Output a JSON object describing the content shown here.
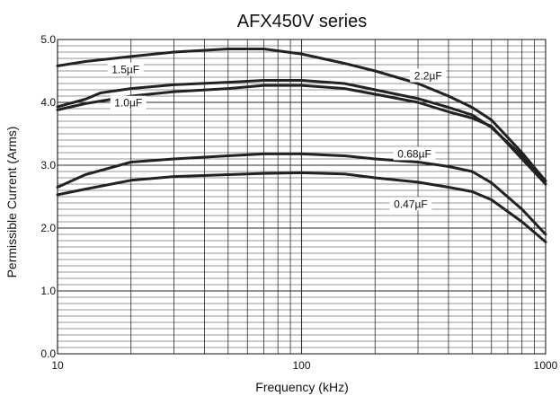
{
  "chart_data": {
    "type": "line",
    "title": "AFX450V series",
    "xlabel": "Frequency (kHz)",
    "ylabel": "Permissible Current (Arms)",
    "x_scale": "log",
    "xlim": [
      10,
      1000
    ],
    "ylim": [
      0,
      5
    ],
    "x_ticks": [
      {
        "value": 10,
        "label": "10"
      },
      {
        "value": 100,
        "label": "100"
      },
      {
        "value": 1000,
        "label": "1000"
      }
    ],
    "y_ticks": [
      {
        "value": 0,
        "label": "0.0"
      },
      {
        "value": 1,
        "label": "1.0"
      },
      {
        "value": 2,
        "label": "2.0"
      },
      {
        "value": 3,
        "label": "3.0"
      },
      {
        "value": 4,
        "label": "4.0"
      },
      {
        "value": 5,
        "label": "5.0"
      }
    ],
    "grid": true,
    "legend": "inline",
    "series": [
      {
        "name": "1.5µF",
        "x": [
          10,
          13,
          20,
          30,
          50,
          70,
          100,
          150,
          200,
          300,
          400,
          500,
          600,
          800,
          1000
        ],
        "y": [
          4.58,
          4.65,
          4.73,
          4.8,
          4.85,
          4.85,
          4.77,
          4.62,
          4.5,
          4.3,
          4.1,
          3.92,
          3.72,
          3.2,
          2.75
        ]
      },
      {
        "name": "2.2µF",
        "x": [
          10,
          13,
          15,
          20,
          30,
          50,
          70,
          100,
          150,
          200,
          300,
          400,
          500,
          600,
          800,
          1000
        ],
        "y": [
          3.93,
          4.05,
          4.15,
          4.22,
          4.28,
          4.32,
          4.35,
          4.35,
          4.3,
          4.2,
          4.06,
          3.92,
          3.8,
          3.6,
          3.15,
          2.7
        ]
      },
      {
        "name": "1.0µF",
        "x": [
          10,
          13,
          20,
          30,
          50,
          70,
          100,
          150,
          200,
          300,
          400,
          500,
          600,
          800,
          1000
        ],
        "y": [
          3.88,
          3.98,
          4.1,
          4.17,
          4.22,
          4.27,
          4.27,
          4.22,
          4.13,
          4.0,
          3.85,
          3.75,
          3.62,
          3.1,
          2.7
        ]
      },
      {
        "name": "0.68µF",
        "x": [
          10,
          13,
          20,
          30,
          50,
          70,
          100,
          150,
          200,
          300,
          400,
          500,
          600,
          800,
          1000
        ],
        "y": [
          2.65,
          2.85,
          3.05,
          3.1,
          3.15,
          3.18,
          3.18,
          3.15,
          3.1,
          3.05,
          2.98,
          2.9,
          2.72,
          2.3,
          1.9
        ]
      },
      {
        "name": "0.47µF",
        "x": [
          10,
          13,
          20,
          30,
          50,
          70,
          100,
          150,
          200,
          300,
          400,
          500,
          600,
          800,
          1000
        ],
        "y": [
          2.53,
          2.62,
          2.76,
          2.82,
          2.85,
          2.87,
          2.88,
          2.86,
          2.8,
          2.73,
          2.65,
          2.58,
          2.45,
          2.1,
          1.78
        ]
      }
    ],
    "colors": {
      "line": "#222222",
      "grid": "#2b2b2b",
      "background": "#ffffff"
    }
  }
}
